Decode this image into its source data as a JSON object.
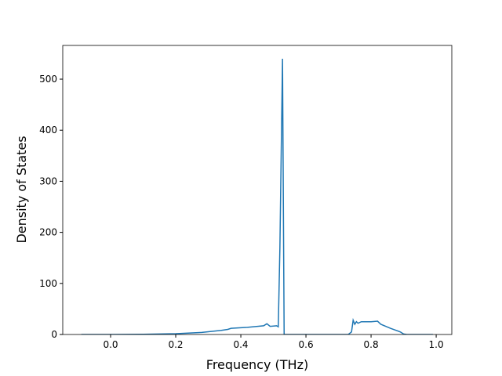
{
  "chart_data": {
    "type": "line",
    "xlabel": "Frequency (THz)",
    "ylabel": "Density of States",
    "x": [
      -0.09,
      0.0,
      0.1,
      0.2,
      0.28,
      0.34,
      0.36,
      0.37,
      0.42,
      0.47,
      0.48,
      0.49,
      0.51,
      0.515,
      0.52,
      0.528,
      0.533,
      0.6,
      0.73,
      0.74,
      0.745,
      0.75,
      0.755,
      0.76,
      0.77,
      0.8,
      0.82,
      0.83,
      0.86,
      0.89,
      0.9,
      0.91,
      0.99
    ],
    "series": [
      {
        "color": "#1f77b4",
        "values": [
          0,
          0,
          0.3,
          1.5,
          4,
          8,
          10,
          12,
          14,
          17,
          21,
          16,
          17,
          15,
          170,
          540,
          0,
          0,
          0,
          5,
          28,
          20,
          25,
          22,
          25,
          25,
          26,
          20,
          12,
          5,
          1,
          0,
          0
        ]
      }
    ],
    "xlim": [
      -0.147,
      1.048
    ],
    "ylim": [
      0,
      566
    ],
    "xticks": [
      {
        "value": 0,
        "label": "0.0"
      },
      0.2,
      0.4,
      0.6,
      0.8,
      {
        "value": 1,
        "label": "1.0"
      }
    ],
    "yticks": [
      0,
      100,
      200,
      300,
      400,
      500
    ]
  }
}
